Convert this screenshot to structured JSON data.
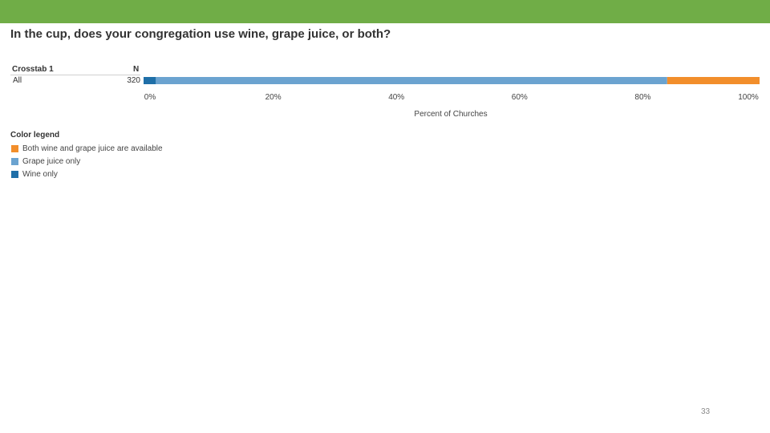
{
  "colors": {
    "header_bar": "#70ad47",
    "both": "#f28e2b",
    "grape_juice": "#6ba3d0",
    "wine": "#1f6fa8"
  },
  "slide": {
    "title": "In the cup, does your congregation use wine, grape juice, or both?",
    "page_number": "33"
  },
  "table": {
    "crosstab_label": "Crosstab 1",
    "n_label": "N",
    "rows": [
      {
        "label": "All",
        "n": "320"
      }
    ]
  },
  "chart_data": {
    "type": "bar",
    "orientation": "horizontal",
    "stacked": true,
    "categories": [
      "All"
    ],
    "series": [
      {
        "name": "Wine only",
        "values": [
          2
        ],
        "color": "#1f6fa8"
      },
      {
        "name": "Grape juice only",
        "values": [
          83
        ],
        "color": "#6ba3d0"
      },
      {
        "name": "Both wine and grape juice are available",
        "values": [
          15
        ],
        "color": "#f28e2b"
      }
    ],
    "xlabel": "Percent of Churches",
    "xlim": [
      0,
      100
    ],
    "xticks": [
      "0%",
      "20%",
      "40%",
      "60%",
      "80%",
      "100%"
    ],
    "legend_title": "Color legend",
    "legend_placement": "bottom-left",
    "legend": [
      {
        "label": "Both wine and grape juice are available",
        "color": "#f28e2b"
      },
      {
        "label": "Grape juice only",
        "color": "#6ba3d0"
      },
      {
        "label": "Wine only",
        "color": "#1f6fa8"
      }
    ]
  }
}
